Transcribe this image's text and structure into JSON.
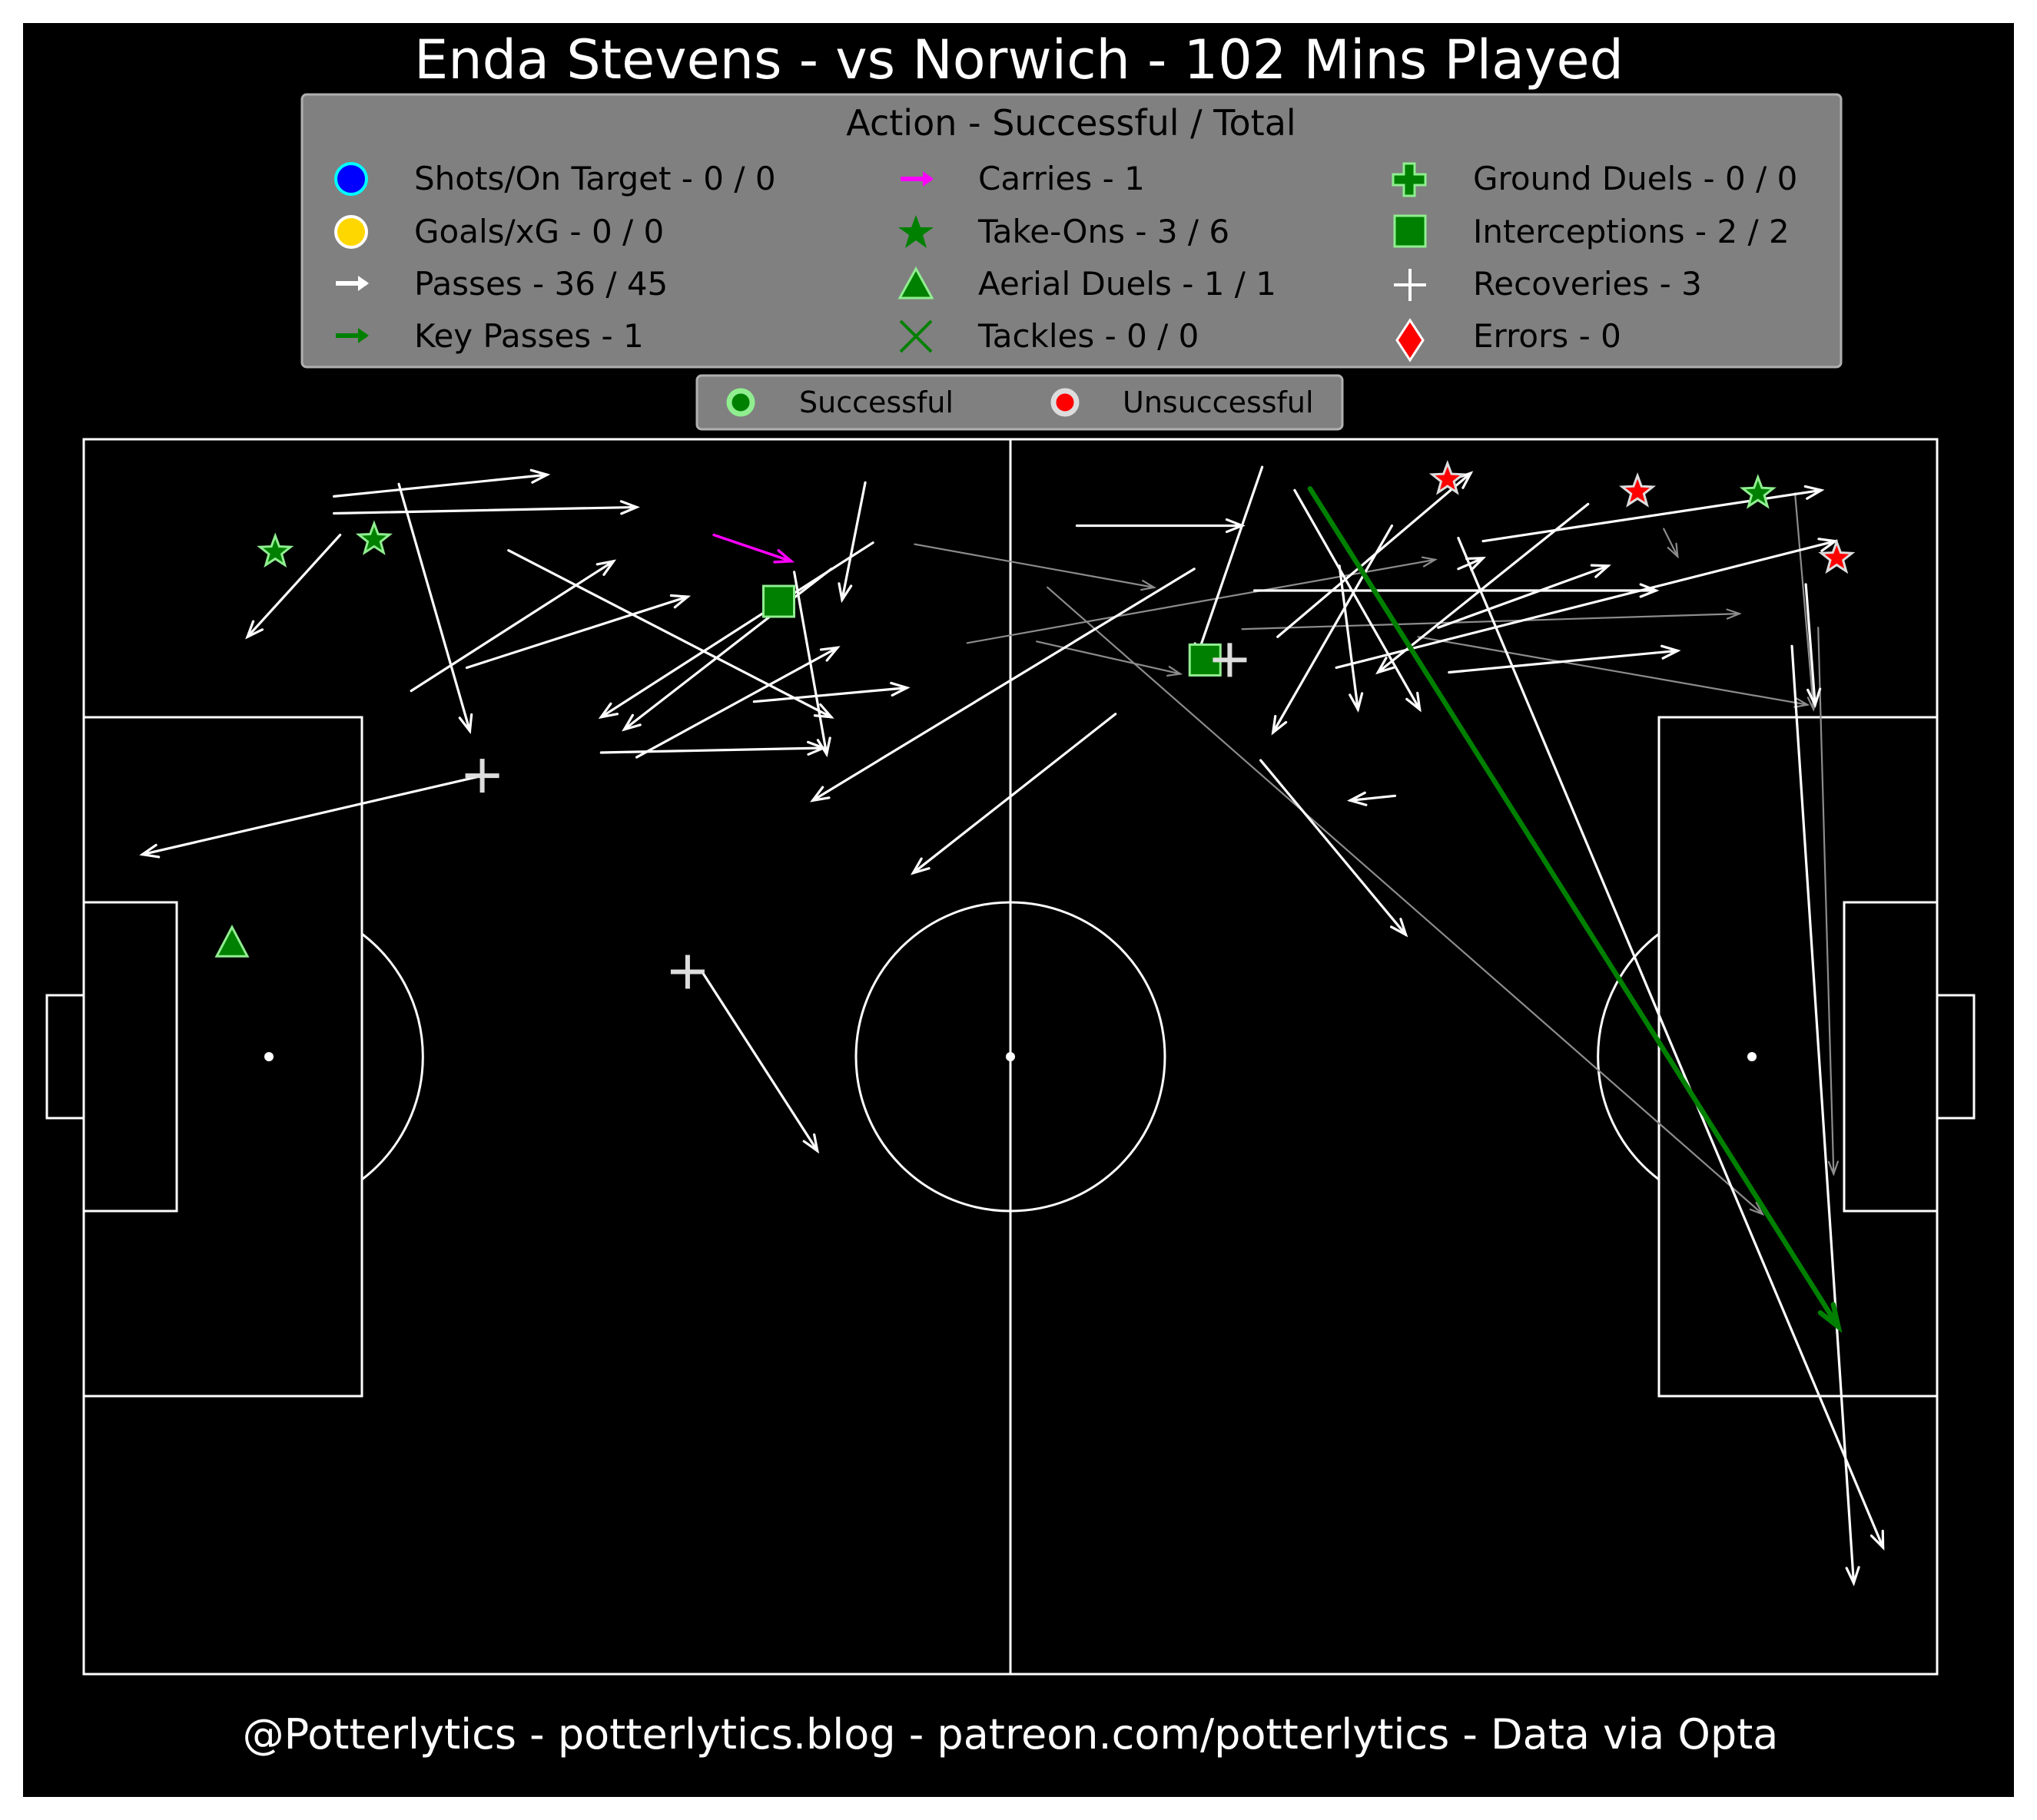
{
  "title": "Enda Stevens - vs Norwich - 102 Mins Played",
  "footer": "@Potterlytics - potterlytics.blog - patreon.com/potterlytics - Data via Opta",
  "legend": {
    "title": "Action - Successful / Total",
    "items": [
      {
        "key": "shots",
        "label": "Shots/On Target - 0 / 0",
        "marker": "circle",
        "color": "#0000ff",
        "edge": "#00ffff"
      },
      {
        "key": "goals",
        "label": "Goals/xG - 0 / 0",
        "marker": "circle",
        "color": "#ffd700",
        "edge": "#ffffff"
      },
      {
        "key": "passes",
        "label": "Passes - 36 / 45",
        "marker": "arrow",
        "color": "#ffffff"
      },
      {
        "key": "key_passes",
        "label": "Key Passes - 1",
        "marker": "arrow",
        "color": "#008000"
      },
      {
        "key": "carries",
        "label": "Carries - 1",
        "marker": "arrow",
        "color": "#ff00ff"
      },
      {
        "key": "take_ons",
        "label": "Take-Ons - 3 / 6",
        "marker": "star",
        "color": "#008000"
      },
      {
        "key": "aerials",
        "label": "Aerial Duels - 1 / 1",
        "marker": "triangle",
        "color": "#008000",
        "edge": "#90ee90"
      },
      {
        "key": "tackles",
        "label": "Tackles - 0 / 0",
        "marker": "x",
        "color": "#008000"
      },
      {
        "key": "ground_duels",
        "label": "Ground Duels - 0 / 0",
        "marker": "plus-thick",
        "color": "#008000",
        "edge": "#90ee90"
      },
      {
        "key": "interceptions",
        "label": "Interceptions - 2 / 2",
        "marker": "square",
        "color": "#008000",
        "edge": "#90ee90"
      },
      {
        "key": "recoveries",
        "label": "Recoveries - 3",
        "marker": "plus",
        "color": "#ffffff"
      },
      {
        "key": "errors",
        "label": "Errors - 0",
        "marker": "diamond",
        "color": "#ff0000",
        "edge": "#ffffff"
      }
    ]
  },
  "outcome_legend": {
    "successful": "Successful",
    "unsuccessful": "Unsuccessful",
    "successful_color": "#008000",
    "successful_edge": "#90ee90",
    "unsuccessful_color": "#ff0000",
    "unsuccessful_edge": "#dddddd"
  },
  "colors": {
    "background": "#000000",
    "pitch_lines": "#ffffff",
    "legend_box": "#808080",
    "pass_success": "#ffffff",
    "pass_fail": "#8c8c8c",
    "key_pass": "#008000",
    "carry": "#ff00ff",
    "marker_success_fill": "#008000",
    "marker_success_edge": "#90ee90",
    "marker_fail_fill": "#ff0000",
    "marker_fail_edge": "#dddddd",
    "recovery": "#dddddd"
  },
  "chart_data": {
    "type": "scatter",
    "pitch": {
      "length": 120,
      "width": 80,
      "description": "football pitch map, attacking left to right"
    },
    "passes_successful": [
      [
        16.2,
        3.7,
        30.0,
        2.3
      ],
      [
        16.2,
        4.8,
        35.8,
        4.4
      ],
      [
        20.4,
        2.9,
        25.0,
        18.9
      ],
      [
        16.6,
        6.2,
        10.6,
        12.8
      ],
      [
        21.2,
        16.3,
        34.3,
        7.9
      ],
      [
        24.8,
        14.8,
        39.1,
        10.2
      ],
      [
        27.5,
        7.2,
        48.4,
        18.0
      ],
      [
        50.6,
        2.8,
        49.1,
        10.4
      ],
      [
        51.1,
        6.7,
        33.5,
        18.0
      ],
      [
        48.4,
        8.4,
        35.0,
        18.8
      ],
      [
        46.0,
        8.6,
        48.1,
        20.4
      ],
      [
        33.5,
        20.3,
        47.9,
        20.0
      ],
      [
        35.8,
        20.6,
        48.8,
        13.5
      ],
      [
        43.4,
        17.0,
        53.3,
        16.1
      ],
      [
        71.9,
        8.4,
        47.2,
        23.4
      ],
      [
        66.8,
        17.8,
        53.7,
        28.1
      ],
      [
        25.8,
        21.8,
        3.8,
        26.9
      ],
      [
        40.1,
        34.6,
        47.5,
        46.1
      ],
      [
        64.3,
        5.6,
        75.0,
        5.6
      ],
      [
        76.3,
        1.8,
        72.0,
        14.3
      ],
      [
        75.8,
        9.8,
        101.8,
        9.8
      ],
      [
        77.3,
        12.8,
        89.8,
        2.2
      ],
      [
        84.7,
        5.6,
        77.0,
        19.0
      ],
      [
        78.4,
        3.3,
        86.5,
        17.5
      ],
      [
        81.3,
        8.2,
        82.5,
        17.5
      ],
      [
        89.0,
        8.4,
        90.6,
        7.7
      ],
      [
        87.7,
        12.2,
        98.7,
        8.2
      ],
      [
        97.4,
        4.2,
        83.8,
        15.1
      ],
      [
        90.6,
        6.6,
        112.5,
        3.3
      ],
      [
        81.1,
        14.8,
        113.4,
        6.6
      ],
      [
        88.4,
        15.1,
        103.2,
        13.7
      ],
      [
        84.9,
        23.1,
        82.0,
        23.4
      ],
      [
        76.2,
        20.8,
        85.6,
        32.1
      ],
      [
        111.5,
        9.4,
        112.1,
        17.2
      ],
      [
        110.6,
        13.4,
        114.6,
        74.1
      ],
      [
        89.0,
        6.4,
        116.5,
        71.8
      ]
    ],
    "passes_unsuccessful": [
      [
        53.8,
        6.8,
        69.3,
        9.6
      ],
      [
        61.7,
        13.1,
        71.0,
        15.2
      ],
      [
        57.2,
        13.2,
        87.5,
        7.8
      ],
      [
        86.4,
        12.8,
        111.6,
        17.2
      ],
      [
        75.0,
        12.3,
        107.2,
        11.3
      ],
      [
        62.4,
        9.6,
        108.7,
        50.2
      ],
      [
        110.8,
        3.5,
        112.0,
        17.5
      ],
      [
        112.3,
        12.2,
        113.3,
        47.6
      ],
      [
        102.3,
        5.8,
        103.2,
        7.6
      ]
    ],
    "key_passes": [
      [
        79.4,
        3.2,
        113.6,
        57.5
      ]
    ],
    "carries": [
      [
        40.8,
        6.2,
        45.8,
        7.9
      ]
    ],
    "take_ons_successful": [
      [
        12.4,
        7.3
      ],
      [
        18.8,
        6.5
      ],
      [
        108.4,
        3.5
      ]
    ],
    "take_ons_unsuccessful": [
      [
        88.3,
        2.6
      ],
      [
        100.6,
        3.4
      ],
      [
        113.5,
        7.7
      ]
    ],
    "aerials_successful": [
      [
        9.6,
        32.7
      ]
    ],
    "interceptions": [
      [
        45.0,
        10.5
      ],
      [
        72.6,
        14.3
      ]
    ],
    "recoveries": [
      [
        25.8,
        21.8
      ],
      [
        39.1,
        34.5
      ],
      [
        74.2,
        14.3
      ]
    ]
  }
}
